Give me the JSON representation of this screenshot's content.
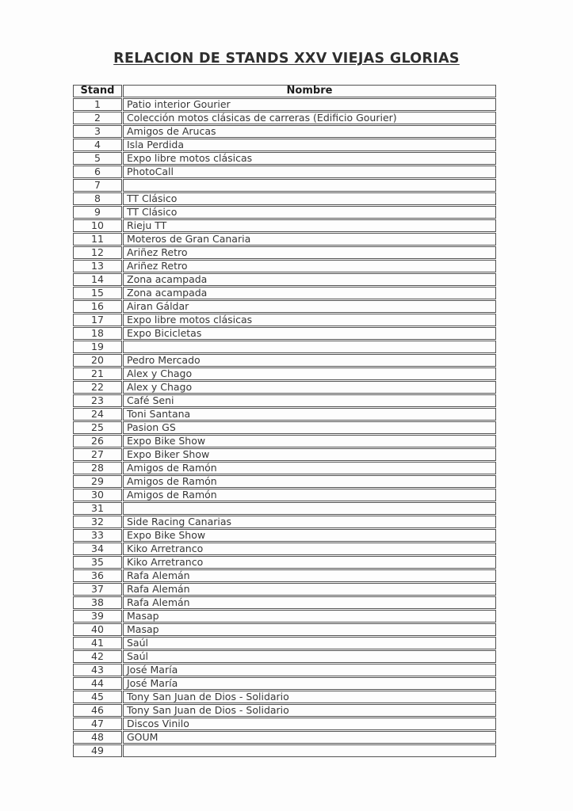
{
  "title": "RELACION DE STANDS XXV VIEJAS GLORIAS",
  "colors": {
    "title_text": "#2e2e2e",
    "cell_text": "#383838",
    "header_text": "#1d1d1d",
    "table_border": "#525252",
    "page_background": "#fdfdfd"
  },
  "table": {
    "headers": [
      "Stand",
      "Nombre"
    ],
    "rows": [
      {
        "stand": "1",
        "nombre": "Patio interior Gourier"
      },
      {
        "stand": "2",
        "nombre": "Colección motos clásicas de carreras (Edificio Gourier)"
      },
      {
        "stand": "3",
        "nombre": "Amigos de Arucas"
      },
      {
        "stand": "4",
        "nombre": "Isla Perdida"
      },
      {
        "stand": "5",
        "nombre": "Expo libre motos clásicas"
      },
      {
        "stand": "6",
        "nombre": "PhotoCall"
      },
      {
        "stand": "7",
        "nombre": ""
      },
      {
        "stand": "8",
        "nombre": "TT Clásico"
      },
      {
        "stand": "9",
        "nombre": "TT Clásico"
      },
      {
        "stand": "10",
        "nombre": "Rieju TT"
      },
      {
        "stand": "11",
        "nombre": "Moteros de Gran Canaria"
      },
      {
        "stand": "12",
        "nombre": "Ariñez Retro"
      },
      {
        "stand": "13",
        "nombre": "Ariñez Retro"
      },
      {
        "stand": "14",
        "nombre": "Zona acampada"
      },
      {
        "stand": "15",
        "nombre": "Zona acampada"
      },
      {
        "stand": "16",
        "nombre": "Airan Gáldar"
      },
      {
        "stand": "17",
        "nombre": "Expo libre motos clásicas"
      },
      {
        "stand": "18",
        "nombre": "Expo Bicicletas"
      },
      {
        "stand": "19",
        "nombre": ""
      },
      {
        "stand": "20",
        "nombre": "Pedro Mercado"
      },
      {
        "stand": "21",
        "nombre": "Alex y Chago"
      },
      {
        "stand": "22",
        "nombre": "Alex y Chago"
      },
      {
        "stand": "23",
        "nombre": "Café Seni"
      },
      {
        "stand": "24",
        "nombre": "Toni Santana"
      },
      {
        "stand": "25",
        "nombre": "Pasion GS"
      },
      {
        "stand": "26",
        "nombre": "Expo Bike Show"
      },
      {
        "stand": "27",
        "nombre": "Expo Biker Show"
      },
      {
        "stand": "28",
        "nombre": "Amigos de Ramón"
      },
      {
        "stand": "29",
        "nombre": "Amigos de Ramón"
      },
      {
        "stand": "30",
        "nombre": "Amigos de Ramón"
      },
      {
        "stand": "31",
        "nombre": ""
      },
      {
        "stand": "32",
        "nombre": "Side Racing Canarias"
      },
      {
        "stand": "33",
        "nombre": "Expo Bike Show"
      },
      {
        "stand": "34",
        "nombre": "Kiko Arretranco"
      },
      {
        "stand": "35",
        "nombre": "Kiko Arretranco"
      },
      {
        "stand": "36",
        "nombre": "Rafa Alemán"
      },
      {
        "stand": "37",
        "nombre": "Rafa Alemán"
      },
      {
        "stand": "38",
        "nombre": "Rafa Alemán"
      },
      {
        "stand": "39",
        "nombre": "Masap"
      },
      {
        "stand": "40",
        "nombre": "Masap"
      },
      {
        "stand": "41",
        "nombre": "Saúl"
      },
      {
        "stand": "42",
        "nombre": "Saúl"
      },
      {
        "stand": "43",
        "nombre": "José María"
      },
      {
        "stand": "44",
        "nombre": "José María"
      },
      {
        "stand": "45",
        "nombre": "Tony San Juan de Dios - Solidario"
      },
      {
        "stand": "46",
        "nombre": "Tony San Juan de Dios - Solidario"
      },
      {
        "stand": "47",
        "nombre": "Discos Vinilo"
      },
      {
        "stand": "48",
        "nombre": "GOUM"
      },
      {
        "stand": "49",
        "nombre": ""
      }
    ]
  }
}
